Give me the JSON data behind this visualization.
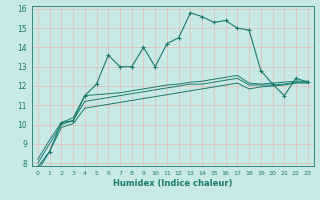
{
  "xlabel": "Humidex (Indice chaleur)",
  "x_values": [
    0,
    1,
    2,
    3,
    4,
    5,
    6,
    7,
    8,
    9,
    10,
    11,
    12,
    13,
    14,
    15,
    16,
    17,
    18,
    19,
    20,
    21,
    22,
    23
  ],
  "line1": [
    7.8,
    8.6,
    10.1,
    10.2,
    11.5,
    12.1,
    13.6,
    13.0,
    13.0,
    14.0,
    13.0,
    14.2,
    14.5,
    15.8,
    15.6,
    15.3,
    15.4,
    15.0,
    14.9,
    12.8,
    12.1,
    11.5,
    12.4,
    12.2
  ],
  "line2": [
    8.2,
    9.2,
    10.1,
    10.35,
    11.5,
    11.55,
    11.6,
    11.65,
    11.75,
    11.85,
    11.95,
    12.05,
    12.1,
    12.2,
    12.25,
    12.35,
    12.45,
    12.55,
    12.15,
    12.1,
    12.15,
    12.2,
    12.25,
    12.25
  ],
  "line3": [
    8.0,
    9.0,
    10.0,
    10.2,
    11.2,
    11.3,
    11.4,
    11.5,
    11.6,
    11.7,
    11.8,
    11.9,
    12.0,
    12.1,
    12.1,
    12.2,
    12.3,
    12.4,
    12.05,
    12.05,
    12.05,
    12.1,
    12.2,
    12.2
  ],
  "line4": [
    7.6,
    8.6,
    9.85,
    10.05,
    10.85,
    10.95,
    11.05,
    11.15,
    11.25,
    11.35,
    11.45,
    11.55,
    11.65,
    11.75,
    11.85,
    11.95,
    12.05,
    12.15,
    11.85,
    11.95,
    12.0,
    12.05,
    12.15,
    12.15
  ],
  "bg_color": "#c8eae6",
  "grid_color": "#e8b8b8",
  "line_color": "#1a7a6e",
  "ylim": [
    8,
    16
  ],
  "xlim": [
    -0.5,
    23.5
  ],
  "yticks": [
    8,
    9,
    10,
    11,
    12,
    13,
    14,
    15,
    16
  ]
}
